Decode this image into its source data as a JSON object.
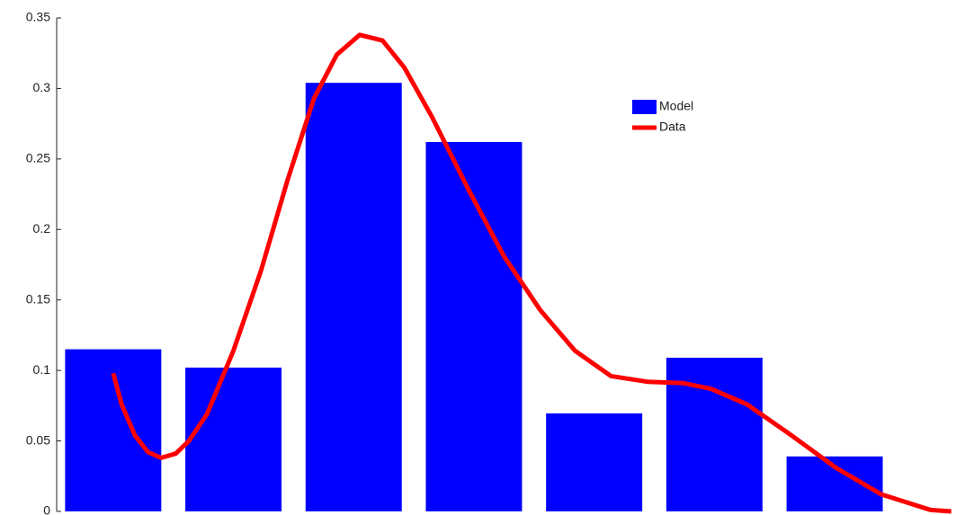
{
  "chart_data": {
    "type": "bar",
    "categories": [
      null,
      null,
      null,
      null,
      null,
      null,
      null
    ],
    "ylim": [
      0,
      0.35
    ],
    "yticks": [
      0,
      0.05,
      0.1,
      0.15,
      0.2,
      0.25,
      0.3,
      0.35
    ],
    "series": [
      {
        "name": "Model",
        "color": "#0000ff",
        "values": [
          0.115,
          0.102,
          0.304,
          0.262,
          0.0695,
          0.109,
          0.039
        ]
      },
      {
        "name": "Data",
        "type": "line",
        "color": "#ff0000",
        "x": [
          1,
          1.07,
          1.18,
          1.29,
          1.4,
          1.52,
          1.63,
          1.78,
          2.0,
          2.23,
          2.45,
          2.67,
          2.86,
          3.05,
          3.24,
          3.42,
          3.65,
          3.95,
          4.25,
          4.55,
          4.84,
          5.14,
          5.44,
          5.74,
          5.97,
          6.27,
          6.64,
          7.01,
          7.39,
          7.8,
          7.97
        ],
        "values": [
          0.098,
          0.076,
          0.054,
          0.042,
          0.038,
          0.041,
          0.05,
          0.069,
          0.114,
          0.171,
          0.235,
          0.293,
          0.324,
          0.338,
          0.334,
          0.315,
          0.28,
          0.229,
          0.181,
          0.143,
          0.114,
          0.096,
          0.092,
          0.091,
          0.087,
          0.076,
          0.054,
          0.031,
          0.012,
          0.001,
          0
        ]
      }
    ]
  }
}
